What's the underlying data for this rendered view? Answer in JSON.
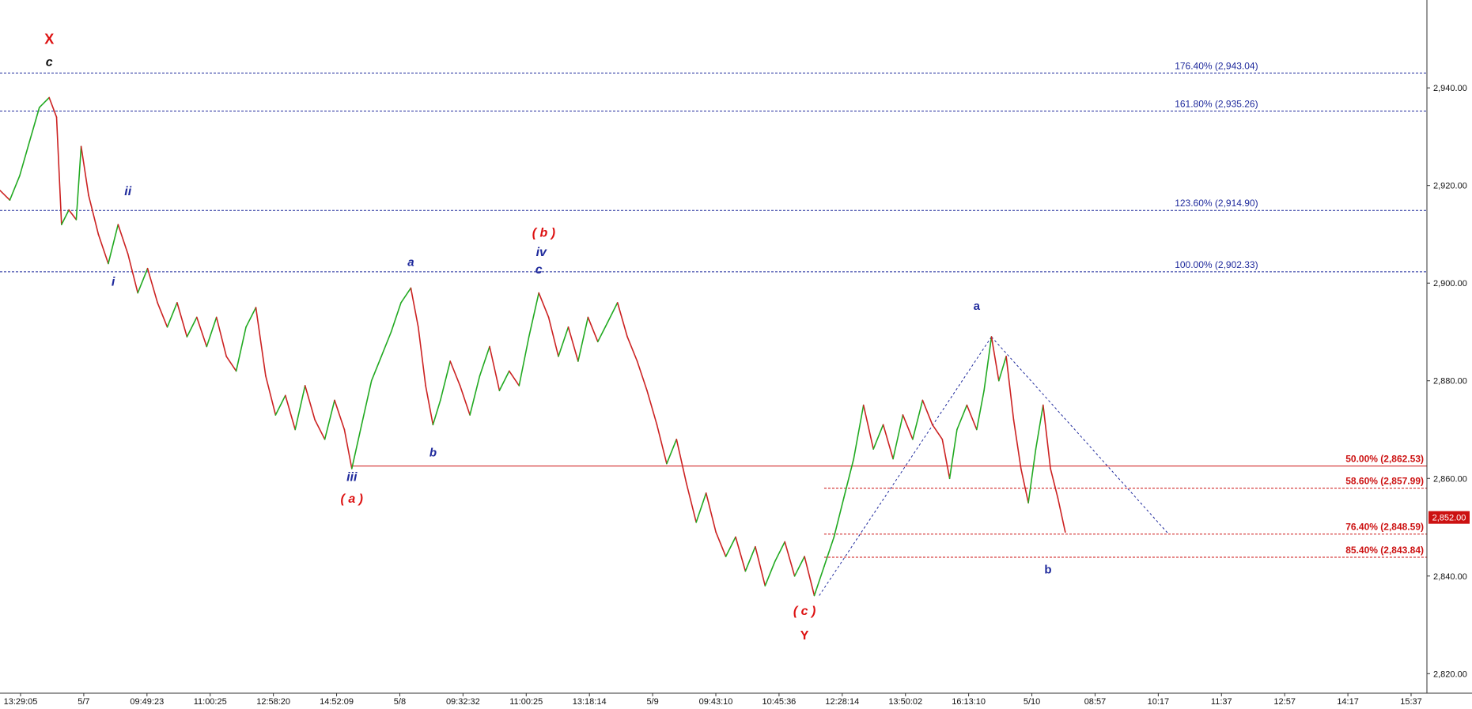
{
  "chart_data": {
    "type": "line",
    "title": "",
    "xlabel": "",
    "ylabel": "",
    "ylim": [
      2816,
      2958
    ],
    "grid": false,
    "y_ticks": [
      2820,
      2840,
      2860,
      2880,
      2900,
      2920,
      2940
    ],
    "y_tick_labels": [
      "2,820.00",
      "2,840.00",
      "2,860.00",
      "2,880.00",
      "2,900.00",
      "2,920.00",
      "2,940.00"
    ],
    "x_tick_labels": [
      "13:29:05",
      "5/7",
      "09:49:23",
      "11:00:25",
      "12:58:20",
      "14:52:09",
      "5/8",
      "09:32:32",
      "11:00:25",
      "13:18:14",
      "5/9",
      "09:43:10",
      "10:45:36",
      "12:28:14",
      "13:50:02",
      "16:13:10",
      "5/10",
      "08:57",
      "10:17",
      "11:37",
      "12:57",
      "14:17",
      "15:37"
    ],
    "price_path": [
      [
        0,
        2919
      ],
      [
        0.8,
        2917
      ],
      [
        1.6,
        2922
      ],
      [
        2.4,
        2929
      ],
      [
        3.2,
        2936
      ],
      [
        4.0,
        2938
      ],
      [
        4.6,
        2934
      ],
      [
        5.0,
        2912
      ],
      [
        5.6,
        2915
      ],
      [
        6.2,
        2913
      ],
      [
        6.6,
        2928
      ],
      [
        7.2,
        2918
      ],
      [
        8.0,
        2910
      ],
      [
        8.8,
        2904
      ],
      [
        9.6,
        2912
      ],
      [
        10.4,
        2906
      ],
      [
        11.2,
        2898
      ],
      [
        12.0,
        2903
      ],
      [
        12.8,
        2896
      ],
      [
        13.6,
        2891
      ],
      [
        14.4,
        2896
      ],
      [
        15.2,
        2889
      ],
      [
        16.0,
        2893
      ],
      [
        16.8,
        2887
      ],
      [
        17.6,
        2893
      ],
      [
        18.4,
        2885
      ],
      [
        19.2,
        2882
      ],
      [
        20.0,
        2891
      ],
      [
        20.8,
        2895
      ],
      [
        21.6,
        2881
      ],
      [
        22.4,
        2873
      ],
      [
        23.2,
        2877
      ],
      [
        24.0,
        2870
      ],
      [
        24.8,
        2879
      ],
      [
        25.6,
        2872
      ],
      [
        26.4,
        2868
      ],
      [
        27.2,
        2876
      ],
      [
        28.0,
        2870
      ],
      [
        28.6,
        2862
      ],
      [
        29.4,
        2871
      ],
      [
        30.2,
        2880
      ],
      [
        31.0,
        2885
      ],
      [
        31.8,
        2890
      ],
      [
        32.6,
        2896
      ],
      [
        33.4,
        2899
      ],
      [
        34.0,
        2891
      ],
      [
        34.6,
        2879
      ],
      [
        35.2,
        2871
      ],
      [
        35.8,
        2876
      ],
      [
        36.6,
        2884
      ],
      [
        37.4,
        2879
      ],
      [
        38.2,
        2873
      ],
      [
        39.0,
        2881
      ],
      [
        39.8,
        2887
      ],
      [
        40.6,
        2878
      ],
      [
        41.4,
        2882
      ],
      [
        42.2,
        2879
      ],
      [
        43.0,
        2889
      ],
      [
        43.8,
        2898
      ],
      [
        44.6,
        2893
      ],
      [
        45.4,
        2885
      ],
      [
        46.2,
        2891
      ],
      [
        47.0,
        2884
      ],
      [
        47.8,
        2893
      ],
      [
        48.6,
        2888
      ],
      [
        49.4,
        2892
      ],
      [
        50.2,
        2896
      ],
      [
        51.0,
        2889
      ],
      [
        51.8,
        2884
      ],
      [
        52.6,
        2878
      ],
      [
        53.4,
        2871
      ],
      [
        54.2,
        2863
      ],
      [
        55.0,
        2868
      ],
      [
        55.8,
        2859
      ],
      [
        56.6,
        2851
      ],
      [
        57.4,
        2857
      ],
      [
        58.2,
        2849
      ],
      [
        59.0,
        2844
      ],
      [
        59.8,
        2848
      ],
      [
        60.6,
        2841
      ],
      [
        61.4,
        2846
      ],
      [
        62.2,
        2838
      ],
      [
        63.0,
        2843
      ],
      [
        63.8,
        2847
      ],
      [
        64.6,
        2840
      ],
      [
        65.4,
        2844
      ],
      [
        66.2,
        2836
      ],
      [
        67.0,
        2842
      ],
      [
        67.8,
        2848
      ],
      [
        68.6,
        2856
      ],
      [
        69.4,
        2864
      ],
      [
        70.2,
        2875
      ],
      [
        71.0,
        2866
      ],
      [
        71.8,
        2871
      ],
      [
        72.6,
        2864
      ],
      [
        73.4,
        2873
      ],
      [
        74.2,
        2868
      ],
      [
        75.0,
        2876
      ],
      [
        75.8,
        2871
      ],
      [
        76.6,
        2868
      ],
      [
        77.2,
        2860
      ],
      [
        77.8,
        2870
      ],
      [
        78.6,
        2875
      ],
      [
        79.4,
        2870
      ],
      [
        80.0,
        2878
      ],
      [
        80.6,
        2889
      ],
      [
        81.2,
        2880
      ],
      [
        81.8,
        2885
      ],
      [
        82.4,
        2872
      ],
      [
        83.0,
        2862
      ],
      [
        83.6,
        2855
      ],
      [
        84.2,
        2866
      ],
      [
        84.8,
        2875
      ],
      [
        85.4,
        2862
      ],
      [
        86.0,
        2856
      ],
      [
        86.6,
        2849
      ]
    ],
    "x_range": [
      0,
      116
    ],
    "fib_levels": [
      {
        "label": "176.40% (2,943.04)",
        "value": 2943.04,
        "color": "#1f2a9c",
        "x_start": 0,
        "x_end": 116,
        "label_side": "left",
        "label_x": 95.5
      },
      {
        "label": "161.80% (2,935.26)",
        "value": 2935.26,
        "color": "#1f2a9c",
        "x_start": 0,
        "x_end": 116,
        "label_side": "left",
        "label_x": 95.5
      },
      {
        "label": "123.60% (2,914.90)",
        "value": 2914.9,
        "color": "#1f2a9c",
        "x_start": 0,
        "x_end": 116,
        "label_side": "left",
        "label_x": 95.5
      },
      {
        "label": "100.00% (2,902.33)",
        "value": 2902.33,
        "color": "#1f2a9c",
        "x_start": 0,
        "x_end": 116,
        "label_side": "left",
        "label_x": 95.5
      },
      {
        "label": "50.00% (2,862.53)",
        "value": 2862.53,
        "color": "#cc1111",
        "x_start": 28.6,
        "x_end": 116,
        "label_side": "right",
        "solid": true
      },
      {
        "label": "58.60% (2,857.99)",
        "value": 2857.99,
        "color": "#cc1111",
        "x_start": 67.0,
        "x_end": 116,
        "label_side": "right"
      },
      {
        "label": "76.40% (2,848.59)",
        "value": 2848.59,
        "color": "#cc1111",
        "x_start": 67.0,
        "x_end": 116,
        "label_side": "right"
      },
      {
        "label": "85.40% (2,843.84)",
        "value": 2843.84,
        "color": "#cc1111",
        "x_start": 67.0,
        "x_end": 116,
        "label_side": "right"
      }
    ],
    "trend_lines": [
      {
        "from": [
          66.6,
          2836
        ],
        "to": [
          80.6,
          2889
        ],
        "color": "#1f2a9c"
      },
      {
        "from": [
          80.6,
          2889
        ],
        "to": [
          95.0,
          2848.6
        ],
        "color": "#1f2a9c"
      }
    ],
    "last_price": {
      "label": "2,852.00",
      "value": 2852.0,
      "color": "#cc1111"
    },
    "wave_labels": [
      {
        "text": "X",
        "x": 4.0,
        "y": 2949,
        "color": "#dd1111",
        "size": 18,
        "italic": false
      },
      {
        "text": "c",
        "x": 4.0,
        "y": 2944.5,
        "color": "#111111",
        "size": 16,
        "italic": true
      },
      {
        "text": "ii",
        "x": 10.4,
        "y": 2918,
        "color": "#1f2a9c",
        "size": 16,
        "italic": true
      },
      {
        "text": "i",
        "x": 9.2,
        "y": 2899.5,
        "color": "#1f2a9c",
        "size": 16,
        "italic": true
      },
      {
        "text": "a",
        "x": 33.4,
        "y": 2903.5,
        "color": "#1f2a9c",
        "size": 15,
        "italic": true
      },
      {
        "text": "b",
        "x": 35.2,
        "y": 2864.5,
        "color": "#1f2a9c",
        "size": 15,
        "italic": true
      },
      {
        "text": "iii",
        "x": 28.6,
        "y": 2859.5,
        "color": "#1f2a9c",
        "size": 16,
        "italic": true
      },
      {
        "text": "( a )",
        "x": 28.6,
        "y": 2855,
        "color": "#dd1111",
        "size": 16,
        "italic": true
      },
      {
        "text": "( b )",
        "x": 44.2,
        "y": 2909.5,
        "color": "#dd1111",
        "size": 16,
        "italic": true
      },
      {
        "text": "iv",
        "x": 44.0,
        "y": 2905.5,
        "color": "#1f2a9c",
        "size": 16,
        "italic": true
      },
      {
        "text": "c",
        "x": 43.8,
        "y": 2902,
        "color": "#1f2a9c",
        "size": 16,
        "italic": true
      },
      {
        "text": "( c )",
        "x": 65.4,
        "y": 2832,
        "color": "#dd1111",
        "size": 16,
        "italic": true
      },
      {
        "text": "Y",
        "x": 65.4,
        "y": 2827,
        "color": "#dd1111",
        "size": 16,
        "italic": false
      },
      {
        "text": "a",
        "x": 79.4,
        "y": 2894.5,
        "color": "#1f2a9c",
        "size": 15,
        "italic": false
      },
      {
        "text": "b",
        "x": 85.2,
        "y": 2840.5,
        "color": "#1f2a9c",
        "size": 15,
        "italic": false
      }
    ],
    "colors": {
      "up": "#22aa22",
      "down": "#cc2222",
      "axis": "#333333"
    }
  }
}
